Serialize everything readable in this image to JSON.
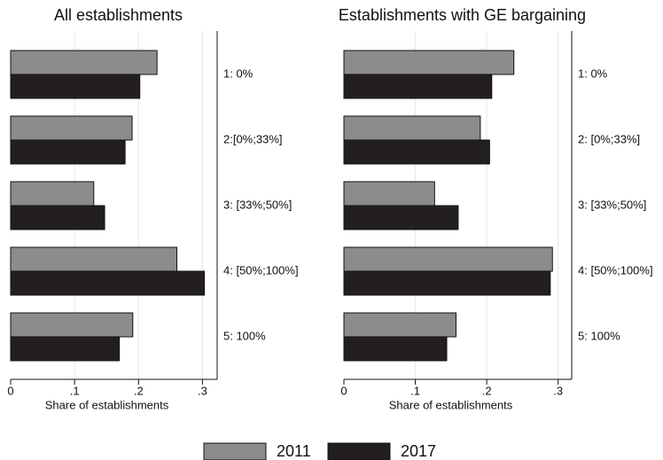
{
  "chart_data": [
    {
      "type": "hbar",
      "title": "All establishments",
      "xlabel": "Share of establishments",
      "categories": [
        "1: 0%",
        "2:[0%;33%]",
        "3: [33%;50%]",
        "4: [50%;100%]",
        "5: 100%"
      ],
      "series": [
        {
          "name": "2011",
          "color": "#8c8c8c",
          "values": [
            0.229,
            0.19,
            0.13,
            0.26,
            0.191
          ]
        },
        {
          "name": "2017",
          "color": "#231f20",
          "values": [
            0.202,
            0.179,
            0.147,
            0.303,
            0.17
          ]
        }
      ],
      "xlim": [
        0,
        0.323
      ],
      "xticks": [
        0,
        {
          "value": 0.1,
          "label": ".1"
        },
        {
          "value": 0.2,
          "label": ".2"
        },
        {
          "value": 0.3,
          "label": ".3"
        }
      ],
      "grid": true
    },
    {
      "type": "hbar",
      "title": "Establishments with GE bargaining",
      "xlabel": "Share of establishments",
      "categories": [
        "1: 0%",
        "2: [0%;33%]",
        "3: [33%;50%]",
        "4: [50%;100%]",
        "5: 100%"
      ],
      "series": [
        {
          "color": "#8c8c8c",
          "values": [
            0.238,
            0.191,
            0.127,
            0.292,
            0.157
          ]
        },
        {
          "color": "#231f20",
          "values": [
            0.207,
            0.204,
            0.16,
            0.289,
            0.144
          ]
        }
      ],
      "xlim": [
        0,
        0.319
      ],
      "xticks": [
        0,
        {
          "value": 0.1,
          "label": ".1"
        },
        {
          "value": 0.2,
          "label": ".2"
        },
        {
          "value": 0.3,
          "label": ".3"
        }
      ],
      "grid": true
    }
  ]
}
